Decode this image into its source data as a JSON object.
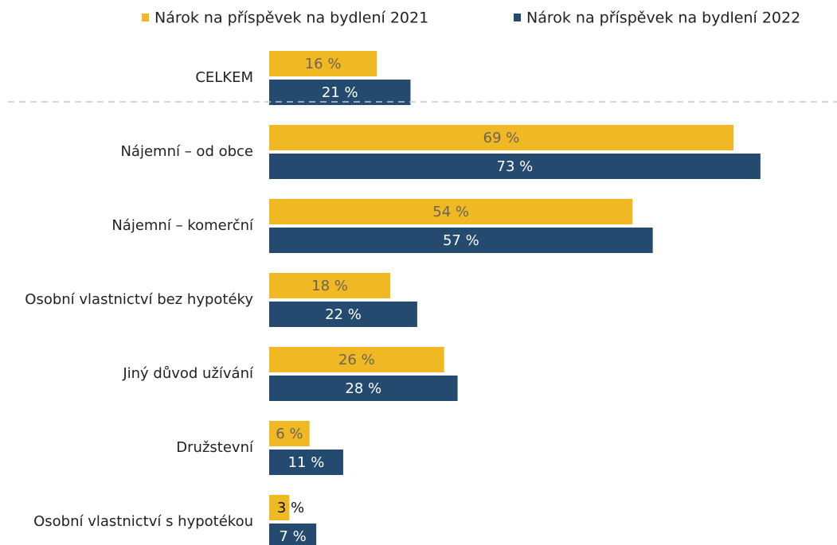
{
  "chart_data": {
    "type": "bar",
    "orientation": "horizontal",
    "categories": [
      "CELKEM",
      "Nájemní – od obce",
      "Nájemní – komerční",
      "Osobní vlastnictví bez hypotéky",
      "Jiný důvod užívání",
      "Družstevní",
      "Osobní vlastnictví s hypotékou"
    ],
    "series": [
      {
        "name": "Nárok na příspěvek na bydlení 2021",
        "color": "#f0b823",
        "values": [
          16,
          69,
          54,
          18,
          26,
          6,
          3
        ],
        "value_labels": [
          "16 %",
          "69 %",
          "54 %",
          "18 %",
          "26 %",
          "6 %",
          "3 %"
        ]
      },
      {
        "name": "Nárok na příspěvek na bydlení 2022",
        "color": "#244b6f",
        "values": [
          21,
          73,
          57,
          22,
          28,
          11,
          7
        ],
        "value_labels": [
          "21 %",
          "73 %",
          "57 %",
          "22 %",
          "28 %",
          "11 %",
          "7 %"
        ]
      }
    ],
    "legend": "top"
  }
}
